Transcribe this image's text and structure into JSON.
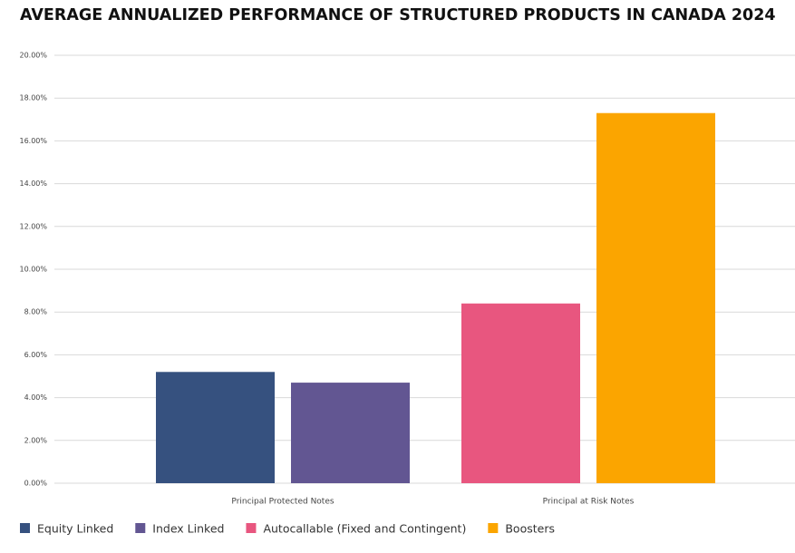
{
  "chart_data": {
    "type": "bar",
    "title": "AVERAGE ANNUALIZED PERFORMANCE OF STRUCTURED PRODUCTS IN CANADA 2024",
    "categories": [
      "Principal Protected Notes",
      "Principal at Risk Notes"
    ],
    "series": [
      {
        "name": "Equity Linked",
        "color": "#36517f",
        "values": [
          5.2,
          null
        ]
      },
      {
        "name": "Index Linked",
        "color": "#625692",
        "values": [
          4.7,
          null
        ]
      },
      {
        "name": "Autocallable (Fixed and Contingent)",
        "color": "#e8567f",
        "values": [
          null,
          8.4
        ]
      },
      {
        "name": "Boosters",
        "color": "#fba500",
        "values": [
          null,
          17.3
        ]
      }
    ],
    "ylim": [
      0,
      20
    ],
    "yticks": [
      {
        "value": 0,
        "label": "0.00%"
      },
      {
        "value": 2,
        "label": "2.00%"
      },
      {
        "value": 4,
        "label": "4.00%"
      },
      {
        "value": 6,
        "label": "6.00%"
      },
      {
        "value": 8,
        "label": "8.00%"
      },
      {
        "value": 10,
        "label": "10.00%"
      },
      {
        "value": 12,
        "label": "12.00%"
      },
      {
        "value": 14,
        "label": "14.00%"
      },
      {
        "value": 16,
        "label": "16.00%"
      },
      {
        "value": 18,
        "label": "18.00%"
      },
      {
        "value": 20,
        "label": "20.00%"
      }
    ],
    "grid": true
  }
}
